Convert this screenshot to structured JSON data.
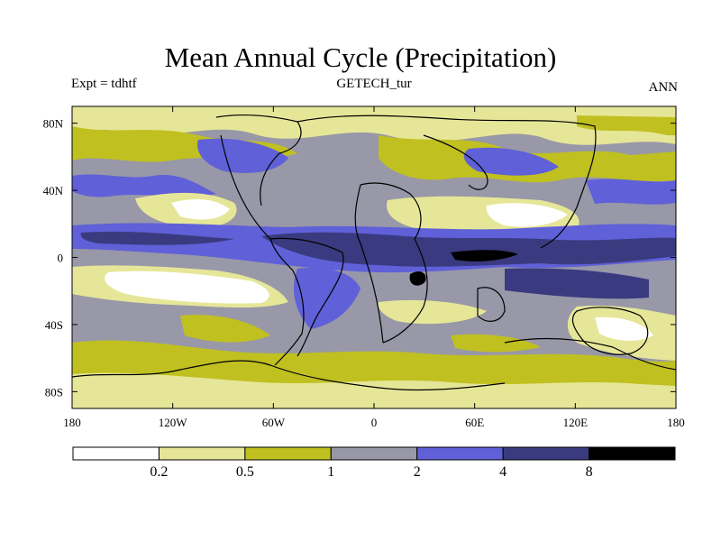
{
  "title": "Mean Annual Cycle (Precipitation)",
  "subtitle_left": "Expt = tdhtf",
  "subtitle_center": "GETECH_tur",
  "subtitle_right": "ANN",
  "map": {
    "projection": "cylindrical-equidistant",
    "lon_range": [
      -180,
      180
    ],
    "lat_range": [
      -90,
      90
    ],
    "x_ticks": [
      {
        "value": -180,
        "label": "180"
      },
      {
        "value": -120,
        "label": "120W"
      },
      {
        "value": -60,
        "label": "60W"
      },
      {
        "value": 0,
        "label": "0"
      },
      {
        "value": 60,
        "label": "60E"
      },
      {
        "value": 120,
        "label": "120E"
      },
      {
        "value": 180,
        "label": "180"
      }
    ],
    "y_ticks": [
      {
        "value": 80,
        "label": "80N"
      },
      {
        "value": 40,
        "label": "40N"
      },
      {
        "value": 0,
        "label": "0"
      },
      {
        "value": -40,
        "label": "40S"
      },
      {
        "value": -80,
        "label": "80S"
      }
    ]
  },
  "colorbar": {
    "levels": [
      "0.2",
      "0.5",
      "1",
      "2",
      "4",
      "8"
    ],
    "colors": [
      "#ffffff",
      "#e6e699",
      "#c0c020",
      "#9898a8",
      "#6060d8",
      "#3a3a80",
      "#000000"
    ]
  }
}
